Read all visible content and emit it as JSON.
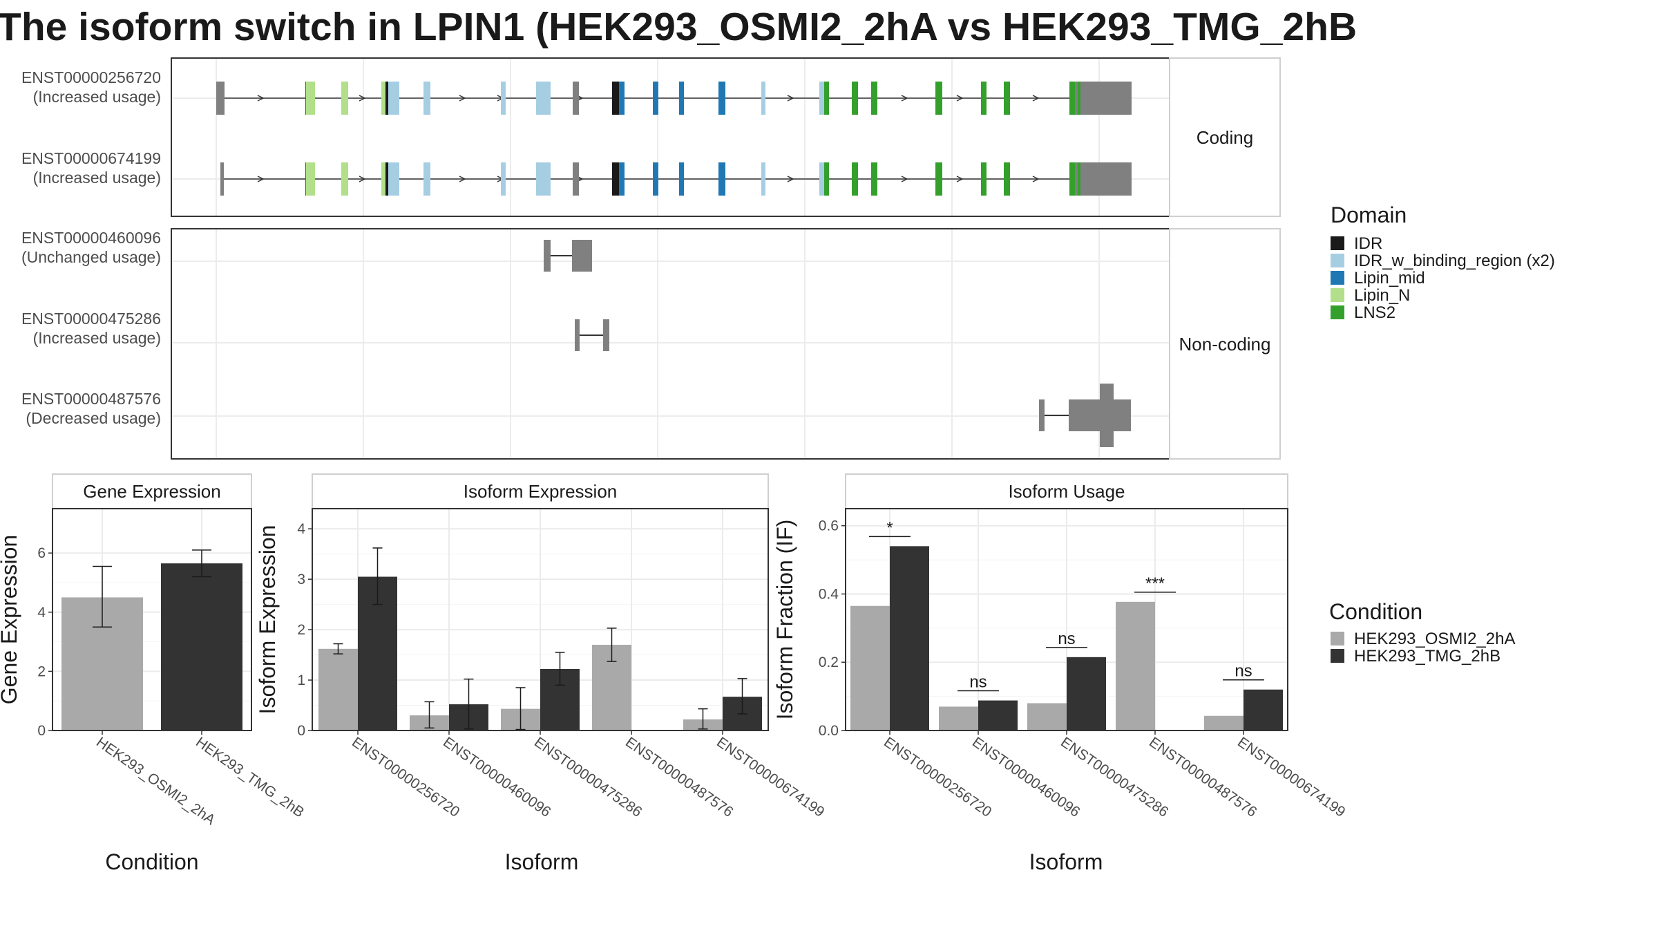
{
  "title": "The isoform switch in LPIN1 (HEK293_OSMI2_2hA vs HEK293_TMG_2hB",
  "colors": {
    "exon_default": "#808080",
    "domains": {
      "IDR": "#1a1a1a",
      "IDR_w_binding_region (x2)": "#a6cee3",
      "Lipin_mid": "#1f78b4",
      "Lipin_N": "#b2df8a",
      "LNS2": "#33a02c"
    },
    "cond1": "#a9a9a9",
    "cond2": "#333333"
  },
  "transcript_panel": {
    "facets": [
      {
        "label": "Coding",
        "isoforms": [
          {
            "id": "ENST00000256720",
            "status": "(Increased usage)"
          },
          {
            "id": "ENST00000674199",
            "status": "(Increased usage)"
          }
        ]
      },
      {
        "label": "Non-coding",
        "isoforms": [
          {
            "id": "ENST00000460096",
            "status": "(Unchanged usage)"
          },
          {
            "id": "ENST00000475286",
            "status": "(Increased usage)"
          },
          {
            "id": "ENST00000487576",
            "status": "(Decreased usage)"
          }
        ]
      }
    ]
  },
  "legend_domain": {
    "title": "Domain",
    "items": [
      "IDR",
      "IDR_w_binding_region (x2)",
      "Lipin_mid",
      "Lipin_N",
      "LNS2"
    ]
  },
  "legend_condition": {
    "title": "Condition",
    "items": [
      "HEK293_OSMI2_2hA",
      "HEK293_TMG_2hB"
    ]
  },
  "chart_data": [
    {
      "type": "bar",
      "title": "Gene Expression",
      "xlabel": "Condition",
      "ylabel": "Gene Expression",
      "categories": [
        "HEK293_OSMI2_2hA",
        "HEK293_TMG_2hB"
      ],
      "values": [
        4.5,
        5.65
      ],
      "error_low": [
        3.5,
        5.2
      ],
      "error_high": [
        5.55,
        6.1
      ],
      "ylim": [
        0,
        7.5
      ],
      "yticks": [
        0,
        2,
        4,
        6
      ],
      "grid": true,
      "legend": "right"
    },
    {
      "type": "bar",
      "title": "Isoform Expression",
      "xlabel": "Isoform",
      "ylabel": "Isoform Expression",
      "categories": [
        "ENST00000256720",
        "ENST00000460096",
        "ENST00000475286",
        "ENST00000487576",
        "ENST00000674199"
      ],
      "series": [
        {
          "name": "HEK293_OSMI2_2hA",
          "values": [
            1.62,
            0.3,
            0.43,
            1.7,
            0.22
          ],
          "error_low": [
            1.52,
            0.05,
            0.02,
            1.37,
            0.03
          ],
          "error_high": [
            1.72,
            0.57,
            0.85,
            2.03,
            0.43
          ]
        },
        {
          "name": "HEK293_TMG_2hB",
          "values": [
            3.05,
            0.52,
            1.22,
            0.0,
            0.67
          ],
          "error_low": [
            2.5,
            0.03,
            0.9,
            0.0,
            0.33
          ],
          "error_high": [
            3.62,
            1.02,
            1.55,
            0.0,
            1.03
          ]
        }
      ],
      "ylim": [
        0,
        4.4
      ],
      "yticks": [
        0,
        1,
        2,
        3,
        4
      ],
      "grid": true
    },
    {
      "type": "bar",
      "title": "Isoform Usage",
      "xlabel": "Isoform",
      "ylabel": "Isoform Fraction (IF)",
      "categories": [
        "ENST00000256720",
        "ENST00000460096",
        "ENST00000475286",
        "ENST00000487576",
        "ENST00000674199"
      ],
      "series": [
        {
          "name": "HEK293_OSMI2_2hA",
          "values": [
            0.365,
            0.07,
            0.08,
            0.377,
            0.043
          ]
        },
        {
          "name": "HEK293_TMG_2hB",
          "values": [
            0.54,
            0.088,
            0.215,
            0.0,
            0.12
          ]
        }
      ],
      "significance": [
        "*",
        "ns",
        "ns",
        "***",
        "ns"
      ],
      "ylim": [
        0,
        0.65
      ],
      "yticks": [
        "0.0",
        "0.2",
        "0.4",
        "0.6"
      ],
      "grid": true
    }
  ]
}
